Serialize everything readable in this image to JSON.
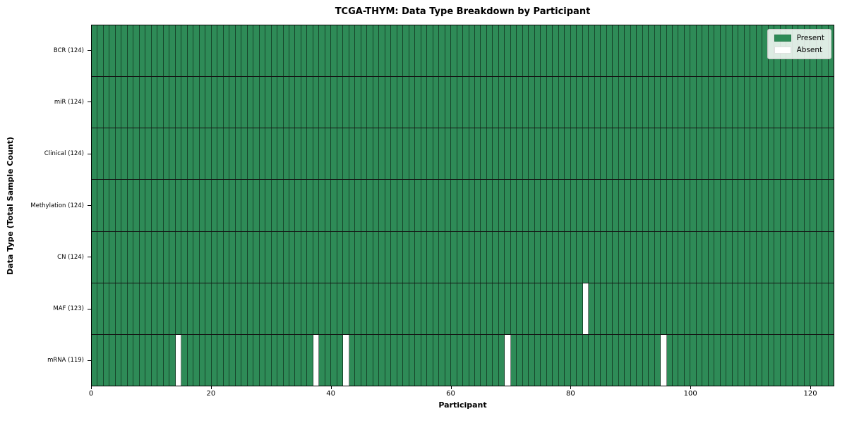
{
  "title": "TCGA-THYM: Data Type Breakdown by Participant",
  "axes": {
    "x_label": "Participant",
    "y_label": "Data Type (Total Sample Count)"
  },
  "legend": {
    "items": [
      {
        "label": "Present",
        "color": "#2e8b57"
      },
      {
        "label": "Absent",
        "color": "#ffffff"
      }
    ]
  },
  "chart_data": {
    "type": "heatmap",
    "title": "TCGA-THYM: Data Type Breakdown by Participant",
    "xlabel": "Participant",
    "ylabel": "Data Type (Total Sample Count)",
    "n_participants": 124,
    "x_range": [
      0,
      124
    ],
    "x_ticks": [
      0,
      20,
      40,
      60,
      80,
      100,
      120
    ],
    "grid": "per-cell dark lines",
    "legend_position": "upper right",
    "present_color": "#2e8b57",
    "absent_color": "#ffffff",
    "rows": [
      {
        "name": "BCR",
        "label": "BCR (124)",
        "total": 124,
        "absent_participants": []
      },
      {
        "name": "miR",
        "label": "miR (124)",
        "total": 124,
        "absent_participants": []
      },
      {
        "name": "Clinical",
        "label": "Clinical (124)",
        "total": 124,
        "absent_participants": []
      },
      {
        "name": "Methylation",
        "label": "Methylation (124)",
        "total": 124,
        "absent_participants": []
      },
      {
        "name": "CN",
        "label": "CN (124)",
        "total": 124,
        "absent_participants": []
      },
      {
        "name": "MAF",
        "label": "MAF (123)",
        "total": 123,
        "absent_participants": [
          82
        ]
      },
      {
        "name": "mRNA",
        "label": "mRNA (119)",
        "total": 119,
        "absent_participants": [
          14,
          37,
          42,
          69,
          95
        ]
      }
    ]
  }
}
